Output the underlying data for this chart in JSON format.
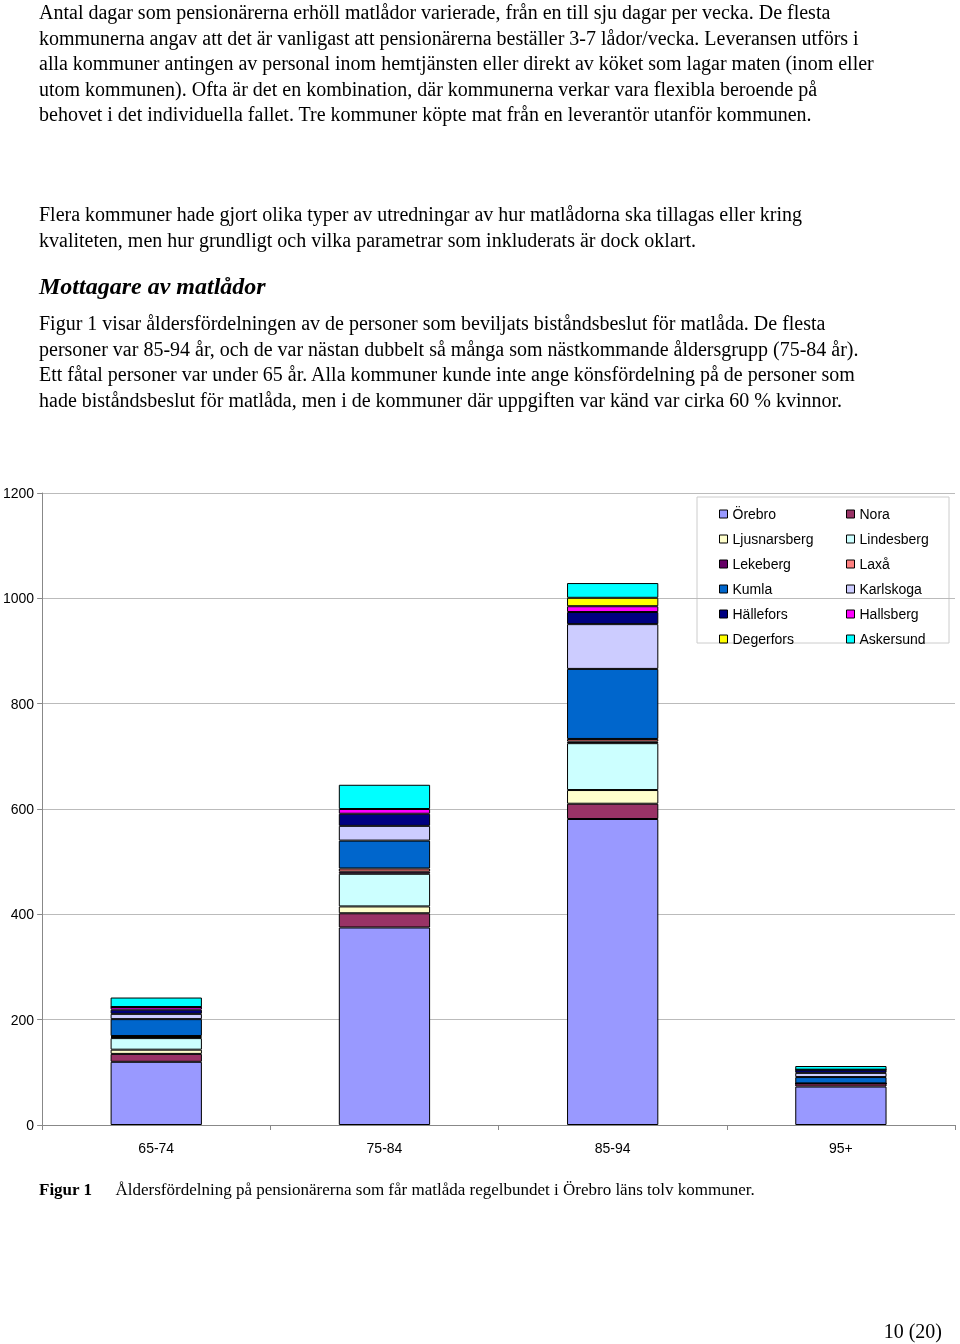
{
  "chart_data": {
    "type": "bar",
    "stacked": true,
    "title": "Mottagare av matlådor",
    "subtitle": "Figur 1 visar åldersfördelningen av de personer som beviljats biståndsbeslut för matlåda. De flesta personer var 85-94 år, och de var nästan dubbelt så många som nästkommande åldersgrupp (75-84 år). Ett fåtal personer var under 65 år. Alla kommuner kunde inte ange könsfördelning på de personer som hade biståndsbeslut för matlåda, men i de kommuner där uppgiften var känd var cirka 60 % kvinnor.",
    "annotations": [
      "Antal dagar som pensionärerna erhöll matlådor varierade, från en till sju dagar per vecka. De flesta kommunerna angav att det är vanligast att pensionärerna beställer 3-7 lådor/vecka. Leveransen utförs i alla kommuner antingen av personal inom hemtjänsten eller direkt av köket som lagar maten (inom eller utom kommunen). Ofta är det en kombination, där kommunerna verkar vara flexibla beroende på behovet i det individuella fallet. Tre kommuner köpte mat från en leverantör utanför kommunen.",
      "Flera kommuner hade gjort olika typer av utredningar av hur matlådorna ska tillagas eller kring kvaliteten, men hur grundligt och vilka parametrar som inkluderats är dock oklart.",
      "Figur 1\tÅldersfördelning på pensionärerna som får matlåda regelbundet i Örebro läns tolv kommuner.",
      "10 (20)"
    ],
    "categories": [
      "65-74",
      "75-84",
      "85-94",
      "95+"
    ],
    "series": [
      {
        "name": "Örebro",
        "color": "#9999ff",
        "values": [
          120,
          375,
          581,
          73
        ]
      },
      {
        "name": "Nora",
        "color": "#993366",
        "values": [
          15,
          27,
          29,
          6
        ]
      },
      {
        "name": "Ljusnarsberg",
        "color": "#ffffcc",
        "values": [
          8,
          13,
          26,
          null
        ]
      },
      {
        "name": "Lindesberg",
        "color": "#ccffff",
        "values": [
          22,
          62,
          89,
          null
        ]
      },
      {
        "name": "Lekeberg",
        "color": "#660066",
        "values": [
          2,
          4,
          3,
          0
        ]
      },
      {
        "name": "Laxå",
        "color": "#ff8080",
        "values": [
          2,
          6,
          5,
          0
        ]
      },
      {
        "name": "Kumla",
        "color": "#0066cc",
        "values": [
          32,
          53,
          133,
          12
        ]
      },
      {
        "name": "Karlskoga",
        "color": "#ccccff",
        "values": [
          10,
          28,
          85,
          8
        ]
      },
      {
        "name": "Hällefors",
        "color": "#000080",
        "values": [
          8,
          23,
          23,
          6
        ]
      },
      {
        "name": "Hallsberg",
        "color": "#ff00ff",
        "values": [
          5,
          9,
          11,
          null
        ]
      },
      {
        "name": "Degerfors",
        "color": "#ffff00",
        "values": [
          0,
          null,
          16,
          0
        ]
      },
      {
        "name": "Askersund",
        "color": "#00ffff",
        "values": [
          18,
          46,
          28,
          7
        ]
      }
    ],
    "ylim": [
      0,
      1200
    ],
    "yticks": [
      0,
      200,
      400,
      600,
      800,
      1000,
      1200
    ],
    "grid": "y",
    "legend": "top right"
  }
}
